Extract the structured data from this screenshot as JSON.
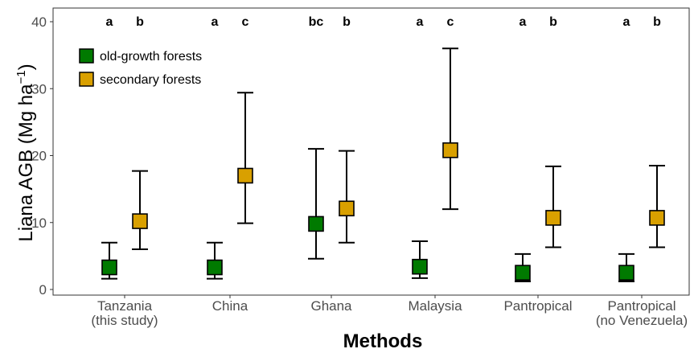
{
  "chart_data": {
    "type": "scatter",
    "xlabel": "Methods",
    "ylabel": "Liana AGB (Mg ha",
    "ylabel_sup": "−1",
    "ylabel_close": ")",
    "ylim": [
      0,
      40
    ],
    "yticks": [
      "0",
      "10",
      "20",
      "30",
      "40"
    ],
    "grid": false,
    "legend_position": "top-left",
    "categories": [
      [
        "Tanzania",
        "(this study)"
      ],
      [
        "China"
      ],
      [
        "Ghana"
      ],
      [
        "Malaysia"
      ],
      [
        "Pantropical"
      ],
      [
        "Pantropical",
        "(no Venezuela)"
      ]
    ],
    "series": [
      {
        "name": "old-growth forests",
        "color": "#007a00",
        "values": [
          3.3,
          3.3,
          9.8,
          3.4,
          2.5,
          2.5
        ],
        "lower": [
          1.6,
          1.6,
          4.6,
          1.7,
          1.2,
          1.2
        ],
        "upper": [
          7.0,
          7.0,
          21.0,
          7.2,
          5.3,
          5.3
        ],
        "letters": [
          "a",
          "a",
          "bc",
          "a",
          "a",
          "a"
        ]
      },
      {
        "name": "secondary forests",
        "color": "#d9a000",
        "values": [
          10.2,
          17.0,
          12.1,
          20.8,
          10.7,
          10.7
        ],
        "lower": [
          6.0,
          9.9,
          7.0,
          12.0,
          6.3,
          6.3
        ],
        "upper": [
          17.7,
          29.4,
          20.7,
          36.0,
          18.4,
          18.5
        ],
        "letters": [
          "b",
          "c",
          "b",
          "c",
          "b",
          "b"
        ]
      }
    ]
  }
}
